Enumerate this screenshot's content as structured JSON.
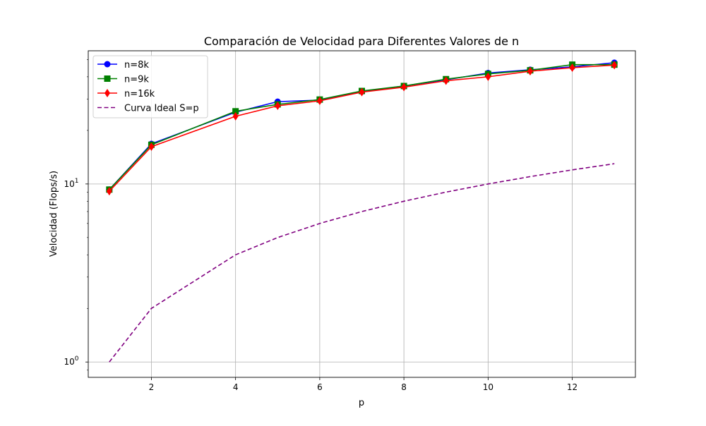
{
  "chart_data": {
    "type": "line",
    "title": "Comparación de Velocidad para Diferentes Valores de n",
    "xlabel": "p",
    "ylabel": "Velocidad (Flops/s)",
    "yscale": "log",
    "xlim": [
      0.5,
      13.5
    ],
    "ylim": [
      0.82,
      56
    ],
    "xticks": [
      2,
      4,
      6,
      8,
      10,
      12
    ],
    "yticks": [
      {
        "value": 1,
        "base": "10",
        "exp": "0"
      },
      {
        "value": 10,
        "base": "10",
        "exp": "1"
      }
    ],
    "grid": true,
    "legend_position": "top-left",
    "x": [
      1,
      2,
      4,
      5,
      6,
      7,
      8,
      9,
      10,
      11,
      12,
      13
    ],
    "series": [
      {
        "name": "n=8k",
        "color": "#0000ff",
        "marker": "circle",
        "linestyle": "solid",
        "values": [
          9.3,
          16.8,
          25.3,
          29.0,
          29.6,
          33.0,
          35.5,
          38.5,
          42.0,
          43.8,
          45.5,
          48.0
        ]
      },
      {
        "name": "n=9k",
        "color": "#008000",
        "marker": "square",
        "linestyle": "solid",
        "values": [
          9.3,
          16.6,
          25.6,
          28.0,
          29.8,
          33.3,
          35.5,
          38.8,
          41.5,
          43.5,
          46.8,
          46.8
        ]
      },
      {
        "name": "n=16k",
        "color": "#ff0000",
        "marker": "diamond",
        "linestyle": "solid",
        "values": [
          9.1,
          16.2,
          24.0,
          27.5,
          29.3,
          32.8,
          35.0,
          38.0,
          40.0,
          43.0,
          45.0,
          46.5
        ]
      },
      {
        "name": "Curva Ideal S=p",
        "color": "#800080",
        "marker": "none",
        "linestyle": "dashed",
        "values": [
          1,
          2,
          4,
          5,
          6,
          7,
          8,
          9,
          10,
          11,
          12,
          13
        ]
      }
    ]
  }
}
